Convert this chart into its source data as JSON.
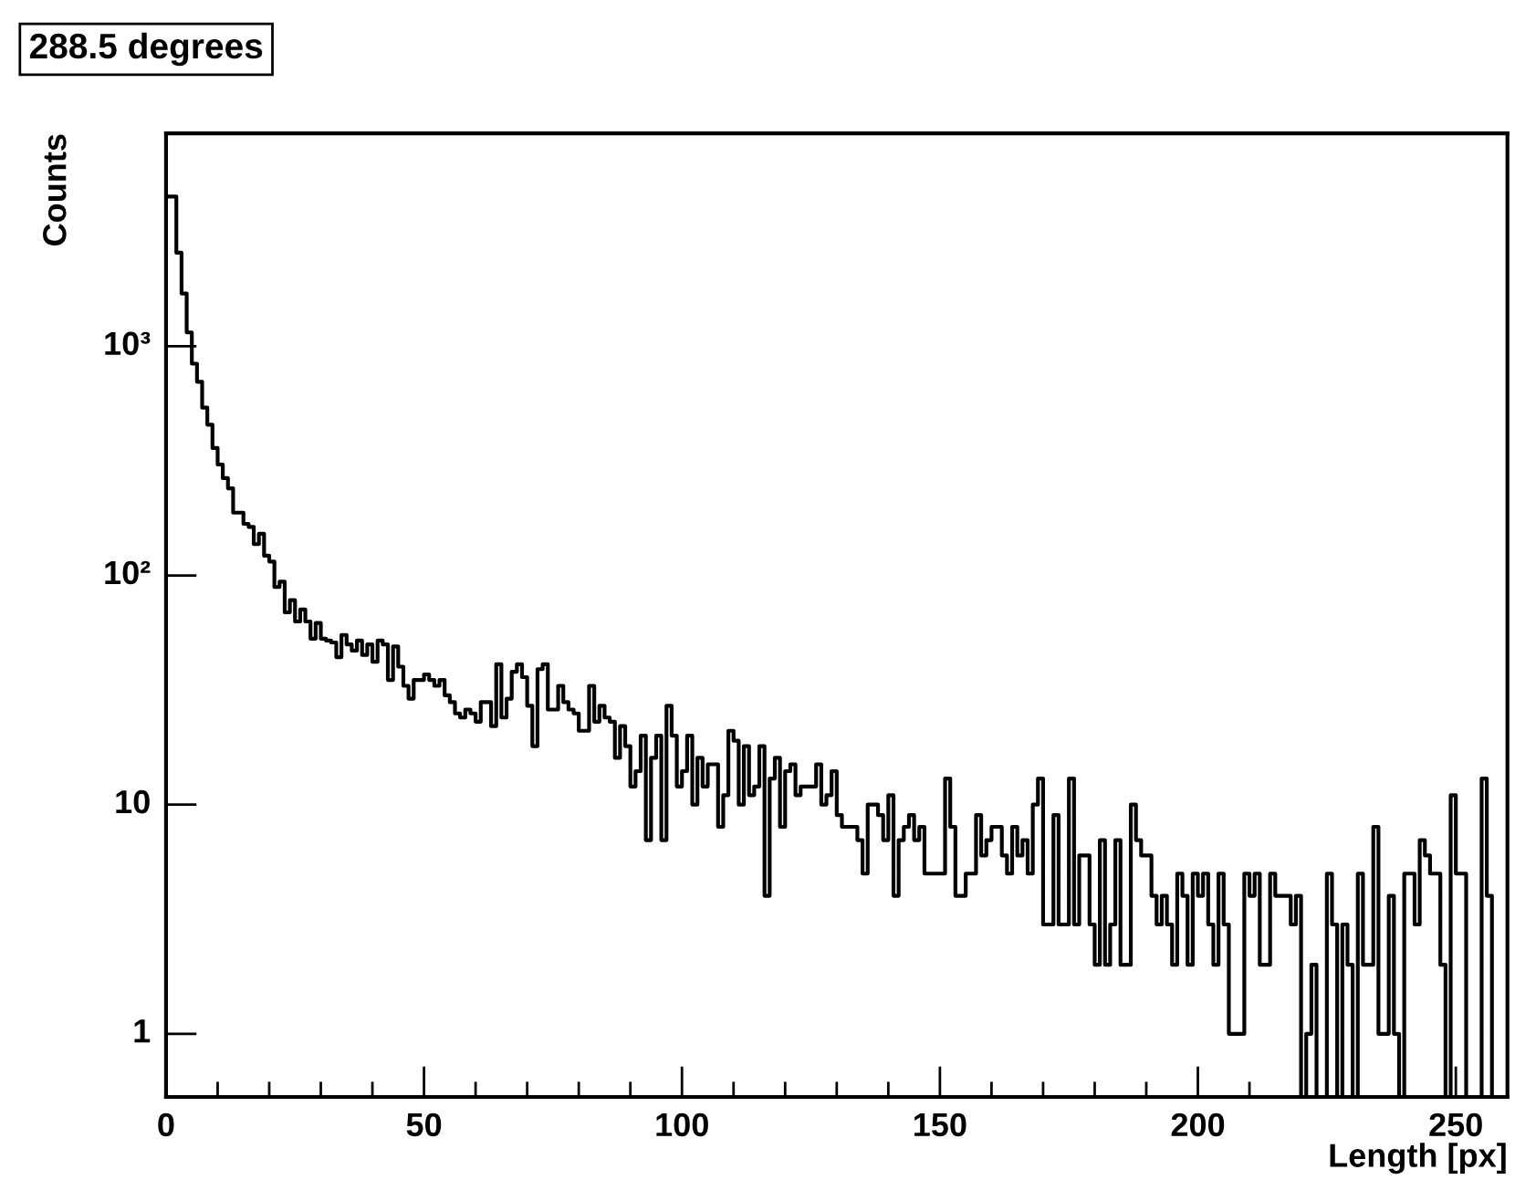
{
  "chart_data": {
    "type": "histogram",
    "title": "288.5 degrees",
    "xlabel": "Length [px]",
    "ylabel": "Counts",
    "color": "#000000",
    "log": true,
    "bins": [
      0,
      1,
      2,
      3,
      4,
      5,
      6,
      7,
      8,
      9,
      10,
      11,
      12,
      13,
      14,
      15,
      16,
      17,
      18,
      19,
      20,
      21,
      22,
      23,
      24,
      25,
      26,
      27,
      28,
      29,
      30,
      31,
      32,
      33,
      34,
      35,
      36,
      37,
      38,
      39,
      40,
      41,
      42,
      43,
      44,
      45,
      46,
      47,
      48,
      49,
      50,
      51,
      52,
      53,
      54,
      55,
      56,
      57,
      58,
      59,
      60,
      61,
      62,
      63,
      64,
      65,
      66,
      67,
      68,
      69,
      70,
      71,
      72,
      73,
      74,
      75,
      76,
      77,
      78,
      79,
      80,
      81,
      82,
      83,
      84,
      85,
      86,
      87,
      88,
      89,
      90,
      91,
      92,
      93,
      94,
      95,
      96,
      97,
      98,
      99,
      100,
      101,
      102,
      103,
      104,
      105,
      106,
      107,
      108,
      109,
      110,
      111,
      112,
      113,
      114,
      115,
      116,
      117,
      118,
      119,
      120,
      121,
      122,
      123,
      124,
      125,
      126,
      127,
      128,
      129,
      130,
      131,
      132,
      133,
      134,
      135,
      136,
      137,
      138,
      139,
      140,
      141,
      142,
      143,
      144,
      145,
      146,
      147,
      148,
      149,
      150,
      151,
      152,
      153,
      154,
      155,
      156,
      157,
      158,
      159,
      160,
      161,
      162,
      163,
      164,
      165,
      166,
      167,
      168,
      169,
      170,
      171,
      172,
      173,
      174,
      175,
      176,
      177,
      178,
      179,
      180,
      181,
      182,
      183,
      184,
      185,
      186,
      187,
      188,
      189,
      190,
      191,
      192,
      193,
      194,
      195,
      196,
      197,
      198,
      199,
      200,
      201,
      202,
      203,
      204,
      205,
      206,
      207,
      208,
      209,
      210,
      211,
      212,
      213,
      214,
      215,
      216,
      217,
      218,
      219,
      220,
      221,
      222,
      223,
      224,
      225,
      226,
      227,
      228,
      229,
      230,
      231,
      232,
      233,
      234,
      235,
      236,
      237,
      238,
      239,
      240,
      241,
      242,
      243,
      244,
      245,
      246,
      247,
      248,
      249,
      250,
      251,
      252,
      253,
      254,
      255,
      256,
      257,
      258,
      259,
      260
    ],
    "values": [
      4500,
      4500,
      2560,
      1700,
      1150,
      840,
      700,
      540,
      455,
      360,
      305,
      266,
      240,
      188,
      188,
      168,
      163,
      137,
      152,
      122,
      115,
      89,
      94,
      69,
      78,
      63,
      71,
      63,
      53,
      62,
      53,
      52,
      51,
      44,
      55,
      50,
      47,
      52,
      45,
      50,
      42,
      52,
      50,
      35,
      49,
      40,
      33,
      29,
      35,
      35,
      37,
      35,
      33,
      35,
      30,
      28,
      25,
      24,
      26,
      25,
      23,
      28,
      28,
      22,
      41,
      24,
      29,
      38,
      41,
      36,
      27,
      18,
      39,
      41,
      26,
      26,
      33,
      28,
      26,
      25,
      21,
      21,
      33,
      23,
      27,
      24,
      23,
      16,
      22,
      18,
      12,
      14,
      20,
      7,
      16,
      20,
      7,
      27,
      20,
      12,
      14,
      20,
      10,
      16,
      12,
      15,
      15,
      8,
      11,
      21,
      19,
      10,
      18,
      11,
      12,
      18,
      4,
      13,
      16,
      8,
      14,
      15,
      11,
      12,
      12,
      12,
      15,
      10,
      11,
      14,
      9,
      8,
      8,
      8,
      7,
      5,
      10,
      10,
      9,
      7,
      11,
      4,
      7,
      8,
      9,
      7,
      8,
      5,
      5,
      5,
      5,
      13,
      8,
      4,
      4,
      5,
      5,
      9,
      6,
      7,
      8,
      8,
      6,
      5,
      8,
      6,
      7,
      5,
      10,
      13,
      3,
      3,
      9,
      3,
      3,
      13,
      3,
      6,
      6,
      3,
      2,
      7,
      2,
      3,
      7,
      2,
      2,
      10,
      7,
      6,
      6,
      4,
      3,
      4,
      3,
      2,
      5,
      4,
      2,
      5,
      4,
      5,
      3,
      2,
      5,
      3,
      1,
      1,
      1,
      5,
      4,
      5,
      2,
      2,
      5,
      4,
      4,
      4,
      3,
      4,
      null,
      1,
      2,
      null,
      null,
      5,
      3,
      null,
      3,
      2,
      null,
      5,
      2,
      2,
      8,
      1,
      1,
      4,
      1,
      null,
      5,
      5,
      3,
      7,
      6,
      5,
      5,
      2,
      null,
      11,
      5,
      5,
      null,
      null,
      null,
      13,
      4,
      null,
      null,
      null
    ],
    "xlim": [
      0,
      260
    ],
    "ylim": [
      0.53,
      8500
    ],
    "xticks": [
      0,
      50,
      100,
      150,
      200,
      250
    ],
    "yticks": [
      1,
      10,
      {
        "value": 100,
        "label": "10²"
      },
      {
        "value": 1000,
        "label": "10³"
      }
    ]
  }
}
